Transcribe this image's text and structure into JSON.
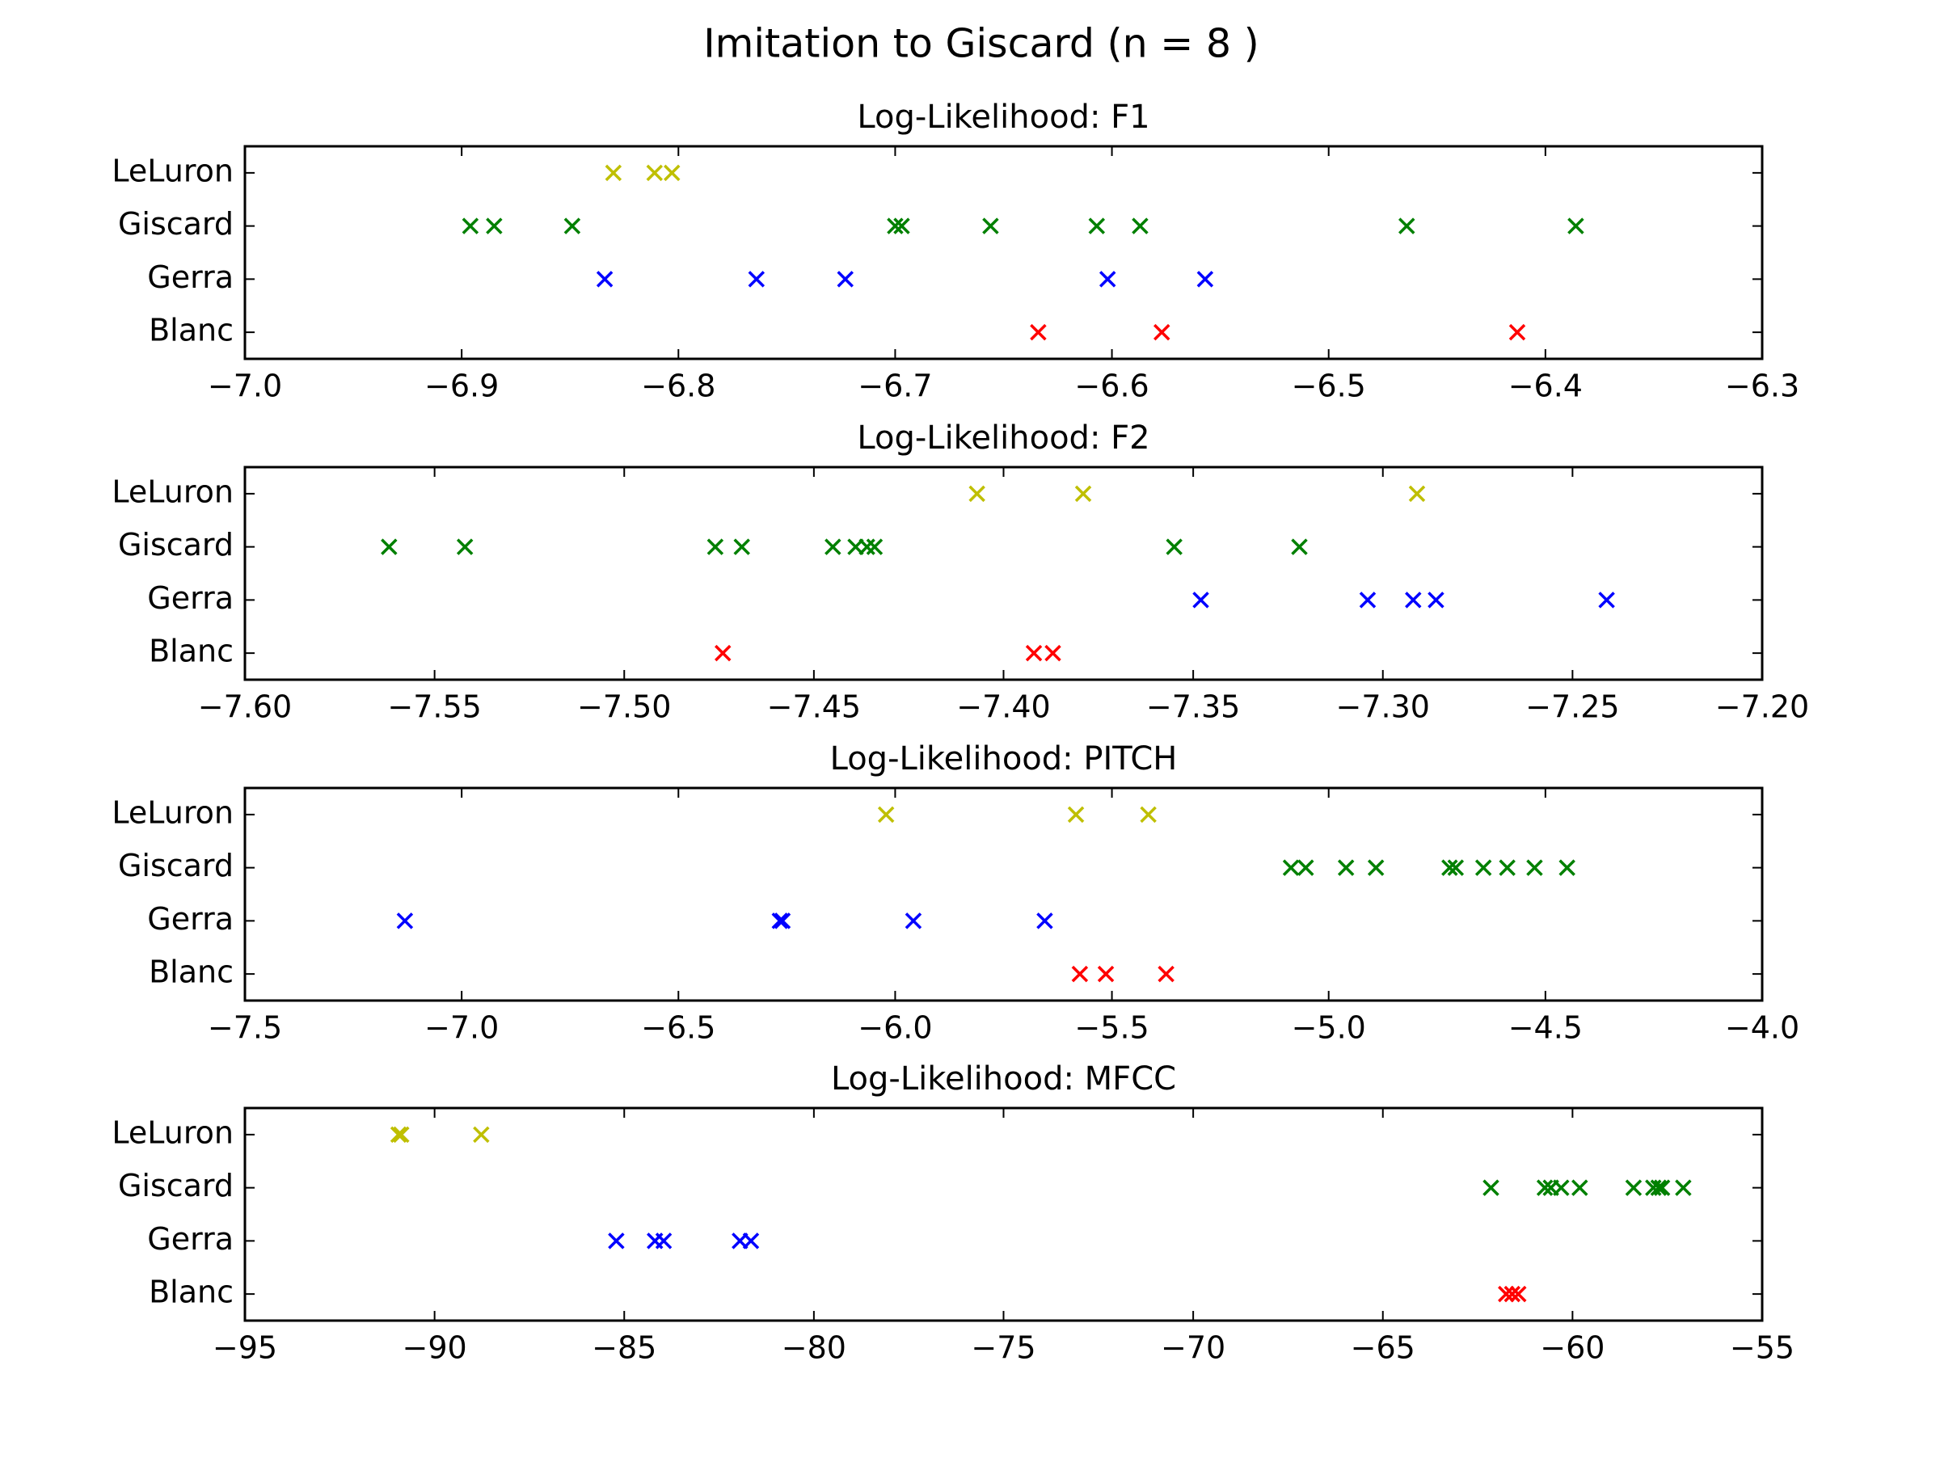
{
  "title": "Imitation to Giscard (n = 8 )",
  "chart_data": [
    {
      "type": "scatter",
      "title": "Log-Likelihood: F1",
      "xlim": [
        -7.0,
        -6.3
      ],
      "xticks": [
        {
          "value": -7.0,
          "label": "−7.0"
        },
        {
          "value": -6.9,
          "label": "−6.9"
        },
        {
          "value": -6.8,
          "label": "−6.8"
        },
        {
          "value": -6.7,
          "label": "−6.7"
        },
        {
          "value": -6.6,
          "label": "−6.6"
        },
        {
          "value": -6.5,
          "label": "−6.5"
        },
        {
          "value": -6.4,
          "label": "−6.4"
        },
        {
          "value": -6.3,
          "label": "−6.3"
        }
      ],
      "series": [
        {
          "name": "Blanc",
          "color": "#ff0000",
          "values": [
            -6.634,
            -6.577,
            -6.413
          ]
        },
        {
          "name": "Gerra",
          "color": "#0000ff",
          "values": [
            -6.834,
            -6.764,
            -6.723,
            -6.602,
            -6.557
          ]
        },
        {
          "name": "Giscard",
          "color": "#008000",
          "values": [
            -6.896,
            -6.885,
            -6.849,
            -6.7,
            -6.697,
            -6.656,
            -6.607,
            -6.587,
            -6.464,
            -6.386
          ]
        },
        {
          "name": "LeLuron",
          "color": "#bfbf00",
          "values": [
            -6.83,
            -6.811,
            -6.803
          ]
        }
      ]
    },
    {
      "type": "scatter",
      "title": "Log-Likelihood: F2",
      "xlim": [
        -7.6,
        -7.2
      ],
      "xticks": [
        {
          "value": -7.6,
          "label": "−7.60"
        },
        {
          "value": -7.55,
          "label": "−7.55"
        },
        {
          "value": -7.5,
          "label": "−7.50"
        },
        {
          "value": -7.45,
          "label": "−7.45"
        },
        {
          "value": -7.4,
          "label": "−7.40"
        },
        {
          "value": -7.35,
          "label": "−7.35"
        },
        {
          "value": -7.3,
          "label": "−7.30"
        },
        {
          "value": -7.25,
          "label": "−7.25"
        },
        {
          "value": -7.2,
          "label": "−7.20"
        }
      ],
      "series": [
        {
          "name": "Blanc",
          "color": "#ff0000",
          "values": [
            -7.474,
            -7.392,
            -7.387
          ]
        },
        {
          "name": "Gerra",
          "color": "#0000ff",
          "values": [
            -7.348,
            -7.304,
            -7.292,
            -7.286,
            -7.241
          ]
        },
        {
          "name": "Giscard",
          "color": "#008000",
          "values": [
            -7.562,
            -7.542,
            -7.476,
            -7.469,
            -7.445,
            -7.439,
            -7.436,
            -7.434,
            -7.355,
            -7.322
          ]
        },
        {
          "name": "LeLuron",
          "color": "#bfbf00",
          "values": [
            -7.407,
            -7.379,
            -7.291
          ]
        }
      ]
    },
    {
      "type": "scatter",
      "title": "Log-Likelihood: PITCH",
      "xlim": [
        -7.5,
        -4.0
      ],
      "xticks": [
        {
          "value": -7.5,
          "label": "−7.5"
        },
        {
          "value": -7.0,
          "label": "−7.0"
        },
        {
          "value": -6.5,
          "label": "−6.5"
        },
        {
          "value": -6.0,
          "label": "−6.0"
        },
        {
          "value": -5.5,
          "label": "−5.5"
        },
        {
          "value": -5.0,
          "label": "−5.0"
        },
        {
          "value": -4.5,
          "label": "−4.5"
        },
        {
          "value": -4.0,
          "label": "−4.0"
        }
      ],
      "series": [
        {
          "name": "Blanc",
          "color": "#ff0000",
          "values": [
            -5.574,
            -5.514,
            -5.375
          ]
        },
        {
          "name": "Gerra",
          "color": "#0000ff",
          "values": [
            -7.131,
            -6.266,
            -6.26,
            -5.958,
            -5.655
          ]
        },
        {
          "name": "Giscard",
          "color": "#008000",
          "values": [
            -5.087,
            -5.053,
            -4.96,
            -4.891,
            -4.721,
            -4.707,
            -4.643,
            -4.588,
            -4.525,
            -4.45
          ]
        },
        {
          "name": "LeLuron",
          "color": "#bfbf00",
          "values": [
            -6.021,
            -5.583,
            -5.416
          ]
        }
      ]
    },
    {
      "type": "scatter",
      "title": "Log-Likelihood: MFCC",
      "xlim": [
        -95,
        -55
      ],
      "xticks": [
        {
          "value": -95,
          "label": "−95"
        },
        {
          "value": -90,
          "label": "−90"
        },
        {
          "value": -85,
          "label": "−85"
        },
        {
          "value": -80,
          "label": "−80"
        },
        {
          "value": -75,
          "label": "−75"
        },
        {
          "value": -70,
          "label": "−70"
        },
        {
          "value": -65,
          "label": "−65"
        },
        {
          "value": -60,
          "label": "−60"
        },
        {
          "value": -55,
          "label": "−55"
        }
      ],
      "series": [
        {
          "name": "Blanc",
          "color": "#ff0000",
          "values": [
            -61.75,
            -61.59,
            -61.43
          ]
        },
        {
          "name": "Gerra",
          "color": "#0000ff",
          "values": [
            -85.21,
            -84.19,
            -83.96,
            -81.95,
            -81.66
          ]
        },
        {
          "name": "Giscard",
          "color": "#008000",
          "values": [
            -62.15,
            -60.73,
            -60.57,
            -60.3,
            -59.81,
            -58.39,
            -57.87,
            -57.73,
            -57.64,
            -57.08
          ]
        },
        {
          "name": "LeLuron",
          "color": "#bfbf00",
          "values": [
            -90.95,
            -90.88,
            -88.77
          ]
        }
      ]
    }
  ]
}
